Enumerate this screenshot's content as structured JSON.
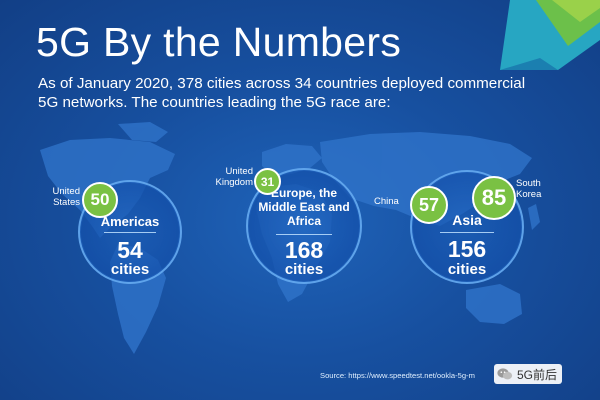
{
  "title": "5G By the Numbers",
  "subtitle": "As of January 2020, 378 cities across 34 countries deployed commercial 5G networks. The countries leading the 5G race are:",
  "regions": {
    "americas": {
      "name": "Americas",
      "count": "54",
      "unit": "cities"
    },
    "emea": {
      "name": "Europe, the Middle East and Africa",
      "count": "168",
      "unit": "cities"
    },
    "asia": {
      "name": "Asia",
      "count": "156",
      "unit": "cities"
    }
  },
  "badges": {
    "us": {
      "label": "United States",
      "value": "50"
    },
    "uk": {
      "label": "United Kingdom",
      "value": "31"
    },
    "china": {
      "label": "China",
      "value": "57"
    },
    "south_korea": {
      "label": "South Korea",
      "value": "85"
    }
  },
  "source": "Source: https://www.speedtest.net/ookla-5g-m",
  "watermark": "5G前后",
  "icons": {
    "watermark": "wechat-icon"
  },
  "colors": {
    "background": "#1a56a8",
    "badge": "#7ac143",
    "ring": "#78beff",
    "accent_teal": "#2ab3c8"
  }
}
